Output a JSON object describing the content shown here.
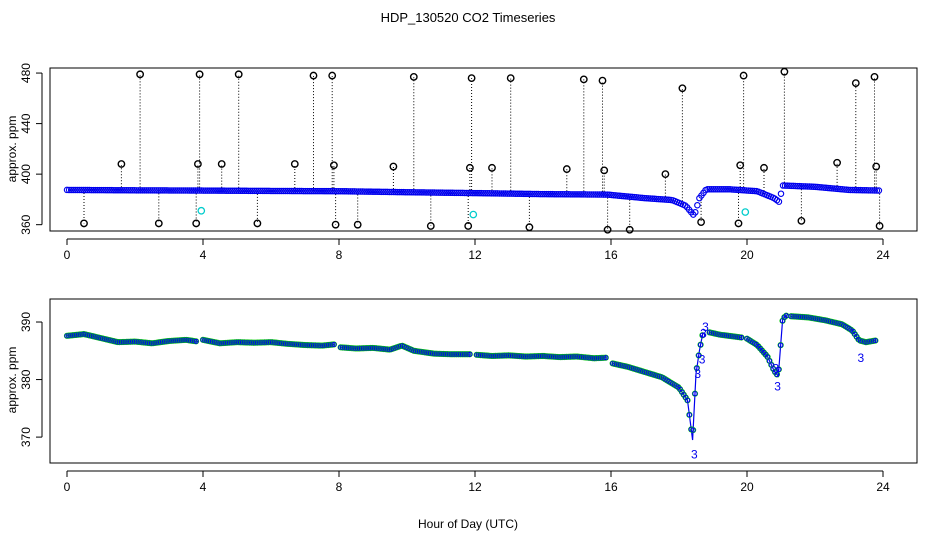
{
  "title": "HDP_130520  CO2 Timeseries",
  "xlabel": "Hour of Day (UTC)",
  "colors": {
    "main_series": "#0000ee",
    "outlier_points": "#000000",
    "flagged_points": "#00cccc",
    "fit_points": "#00cc00",
    "drop_lines": "#000000"
  },
  "chart_data": [
    {
      "type": "scatter",
      "panel": "top",
      "ylabel": "approx. ppm",
      "xlim": [
        -0.5,
        25
      ],
      "ylim": [
        355,
        484
      ],
      "xticks": [
        0,
        4,
        8,
        12,
        16,
        20,
        24
      ],
      "xtick_labels": [
        "0",
        "4",
        "8",
        "12",
        "16",
        "20",
        "24"
      ],
      "yticks": [
        360,
        400,
        440,
        480
      ],
      "ytick_labels": [
        "360",
        "400",
        "440",
        "480"
      ],
      "baseline": [
        [
          0.0,
          387.5
        ],
        [
          2.0,
          387.2
        ],
        [
          4.0,
          387.0
        ],
        [
          6.0,
          386.7
        ],
        [
          8.0,
          386.5
        ],
        [
          10.0,
          385.7
        ],
        [
          12.0,
          385.0
        ],
        [
          14.0,
          384.2
        ],
        [
          15.9,
          383.8
        ],
        [
          17.0,
          381.0
        ],
        [
          17.8,
          379.5
        ],
        [
          18.2,
          375.0
        ],
        [
          18.45,
          367.0
        ],
        [
          18.6,
          381.0
        ],
        [
          18.8,
          388.0
        ],
        [
          19.5,
          388.0
        ],
        [
          20.3,
          386.5
        ],
        [
          20.8,
          381.0
        ],
        [
          20.95,
          378.0
        ],
        [
          21.05,
          391.0
        ],
        [
          22.0,
          390.0
        ],
        [
          23.0,
          387.5
        ],
        [
          23.9,
          387.0
        ]
      ],
      "outliers": [
        {
          "x": 0.5,
          "y": 361
        },
        {
          "x": 1.6,
          "y": 408
        },
        {
          "x": 2.15,
          "y": 479
        },
        {
          "x": 2.7,
          "y": 361
        },
        {
          "x": 3.8,
          "y": 361
        },
        {
          "x": 3.85,
          "y": 408
        },
        {
          "x": 3.9,
          "y": 479
        },
        {
          "x": 4.55,
          "y": 408
        },
        {
          "x": 5.05,
          "y": 479
        },
        {
          "x": 5.6,
          "y": 361
        },
        {
          "x": 6.7,
          "y": 408
        },
        {
          "x": 7.25,
          "y": 478
        },
        {
          "x": 7.8,
          "y": 478
        },
        {
          "x": 7.85,
          "y": 407
        },
        {
          "x": 7.9,
          "y": 360
        },
        {
          "x": 8.55,
          "y": 360
        },
        {
          "x": 9.6,
          "y": 406
        },
        {
          "x": 10.2,
          "y": 477
        },
        {
          "x": 10.7,
          "y": 359
        },
        {
          "x": 11.8,
          "y": 359
        },
        {
          "x": 11.85,
          "y": 405
        },
        {
          "x": 11.9,
          "y": 476
        },
        {
          "x": 12.5,
          "y": 405
        },
        {
          "x": 13.05,
          "y": 476
        },
        {
          "x": 13.6,
          "y": 358
        },
        {
          "x": 14.7,
          "y": 404
        },
        {
          "x": 15.2,
          "y": 475
        },
        {
          "x": 15.75,
          "y": 474
        },
        {
          "x": 15.8,
          "y": 403
        },
        {
          "x": 15.9,
          "y": 356
        },
        {
          "x": 16.55,
          "y": 356
        },
        {
          "x": 17.6,
          "y": 400
        },
        {
          "x": 18.1,
          "y": 468
        },
        {
          "x": 18.65,
          "y": 362
        },
        {
          "x": 19.75,
          "y": 361
        },
        {
          "x": 19.8,
          "y": 407
        },
        {
          "x": 19.9,
          "y": 478
        },
        {
          "x": 20.5,
          "y": 405
        },
        {
          "x": 21.1,
          "y": 481
        },
        {
          "x": 21.6,
          "y": 363
        },
        {
          "x": 22.65,
          "y": 409
        },
        {
          "x": 23.2,
          "y": 472
        },
        {
          "x": 23.75,
          "y": 477
        },
        {
          "x": 23.8,
          "y": 406
        },
        {
          "x": 23.9,
          "y": 359
        }
      ],
      "flagged": [
        {
          "x": 3.95,
          "y": 371
        },
        {
          "x": 11.95,
          "y": 368
        },
        {
          "x": 19.95,
          "y": 370
        }
      ]
    },
    {
      "type": "line",
      "panel": "bottom",
      "ylabel": "approx. ppm",
      "xlim": [
        -0.5,
        25
      ],
      "ylim": [
        365.5,
        394
      ],
      "xticks": [
        0,
        4,
        8,
        12,
        16,
        20,
        24
      ],
      "xtick_labels": [
        "0",
        "4",
        "8",
        "12",
        "16",
        "20",
        "24"
      ],
      "yticks": [
        370,
        380,
        390
      ],
      "ytick_labels": [
        "370",
        "380",
        "390"
      ],
      "series_segments": [
        [
          [
            0.0,
            387.6
          ],
          [
            0.5,
            387.9
          ],
          [
            1.0,
            387.2
          ],
          [
            1.5,
            386.5
          ],
          [
            2.0,
            386.6
          ],
          [
            2.5,
            386.3
          ],
          [
            3.0,
            386.7
          ],
          [
            3.5,
            386.9
          ],
          [
            3.85,
            386.6
          ]
        ],
        [
          [
            4.0,
            386.9
          ],
          [
            4.5,
            386.3
          ],
          [
            5.0,
            386.5
          ],
          [
            5.5,
            386.4
          ],
          [
            6.0,
            386.5
          ],
          [
            6.5,
            386.2
          ],
          [
            7.0,
            386.0
          ],
          [
            7.5,
            385.9
          ],
          [
            7.85,
            386.1
          ]
        ],
        [
          [
            8.05,
            385.6
          ],
          [
            8.5,
            385.4
          ],
          [
            9.0,
            385.5
          ],
          [
            9.5,
            385.2
          ],
          [
            9.85,
            385.9
          ],
          [
            10.2,
            385.0
          ],
          [
            10.8,
            384.5
          ],
          [
            11.3,
            384.4
          ],
          [
            11.85,
            384.4
          ]
        ],
        [
          [
            12.05,
            384.3
          ],
          [
            12.5,
            384.1
          ],
          [
            13.0,
            384.2
          ],
          [
            13.5,
            384.0
          ],
          [
            14.0,
            384.1
          ],
          [
            14.5,
            383.9
          ],
          [
            15.0,
            384.0
          ],
          [
            15.5,
            383.7
          ],
          [
            15.85,
            383.8
          ]
        ],
        [
          [
            16.05,
            382.8
          ],
          [
            16.5,
            382.2
          ],
          [
            17.0,
            381.3
          ],
          [
            17.5,
            380.4
          ],
          [
            18.0,
            378.6
          ],
          [
            18.25,
            376.4
          ],
          [
            18.4,
            369.5
          ],
          [
            18.5,
            381.0
          ],
          [
            18.6,
            385.0
          ],
          [
            18.7,
            388.0
          ]
        ],
        [
          [
            18.9,
            388.2
          ],
          [
            19.2,
            387.8
          ],
          [
            19.6,
            387.5
          ],
          [
            19.85,
            387.3
          ]
        ],
        [
          [
            20.0,
            387.1
          ],
          [
            20.3,
            386.0
          ],
          [
            20.6,
            384.0
          ],
          [
            20.8,
            381.5
          ],
          [
            20.92,
            380.6
          ],
          [
            21.05,
            390.6
          ],
          [
            21.2,
            391.3
          ]
        ],
        [
          [
            21.3,
            391.0
          ],
          [
            21.8,
            390.8
          ],
          [
            22.3,
            390.3
          ],
          [
            22.8,
            389.6
          ],
          [
            23.1,
            388.5
          ],
          [
            23.3,
            386.8
          ],
          [
            23.5,
            386.5
          ],
          [
            23.8,
            386.8
          ]
        ]
      ],
      "labels": [
        {
          "x": 18.45,
          "y": 367.0,
          "text": "3"
        },
        {
          "x": 18.55,
          "y": 381.0,
          "text": "3"
        },
        {
          "x": 18.68,
          "y": 383.5,
          "text": "3"
        },
        {
          "x": 18.72,
          "y": 388.0,
          "text": "3"
        },
        {
          "x": 18.78,
          "y": 389.2,
          "text": "3"
        },
        {
          "x": 20.9,
          "y": 378.8,
          "text": "3"
        },
        {
          "x": 20.85,
          "y": 382.0,
          "text": "3"
        },
        {
          "x": 23.35,
          "y": 383.8,
          "text": "3"
        }
      ]
    }
  ]
}
